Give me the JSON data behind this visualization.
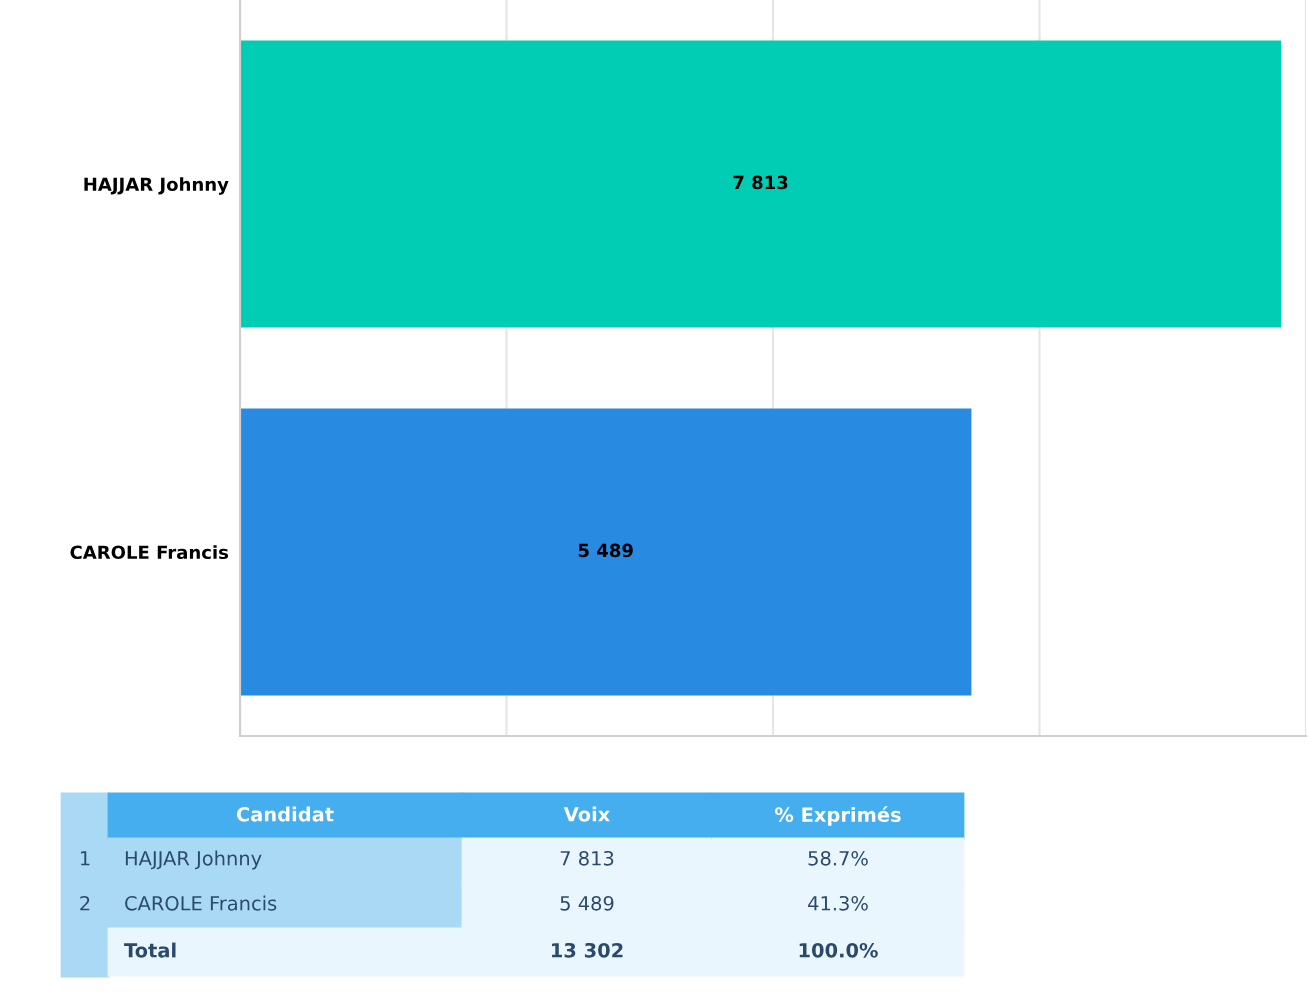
{
  "chart_data": {
    "type": "bar",
    "orientation": "horizontal",
    "categories": [
      "HAJJAR Johnny",
      "CAROLE Francis"
    ],
    "values": [
      7813,
      5489
    ],
    "value_labels": [
      "7 813",
      "5 489"
    ],
    "colors": [
      "#00cdb4",
      "#288ae0"
    ],
    "xlim": [
      0,
      8000
    ],
    "xticks": [
      {
        "value": 0,
        "label": null
      },
      {
        "value": 2000,
        "label": null
      },
      {
        "value": 4000,
        "label": null
      },
      {
        "value": 6000,
        "label": null
      },
      {
        "value": 8000,
        "label": null
      }
    ],
    "grid": "x",
    "tick_labels": "y",
    "annotations": [
      "Candidat",
      "Voix",
      "% Exprimés",
      "1",
      "HAJJAR Johnny",
      "7 813",
      "58.7%",
      "2",
      "CAROLE Francis",
      "5 489",
      "41.3%",
      "Total",
      "13 302",
      "100.0%"
    ]
  }
}
